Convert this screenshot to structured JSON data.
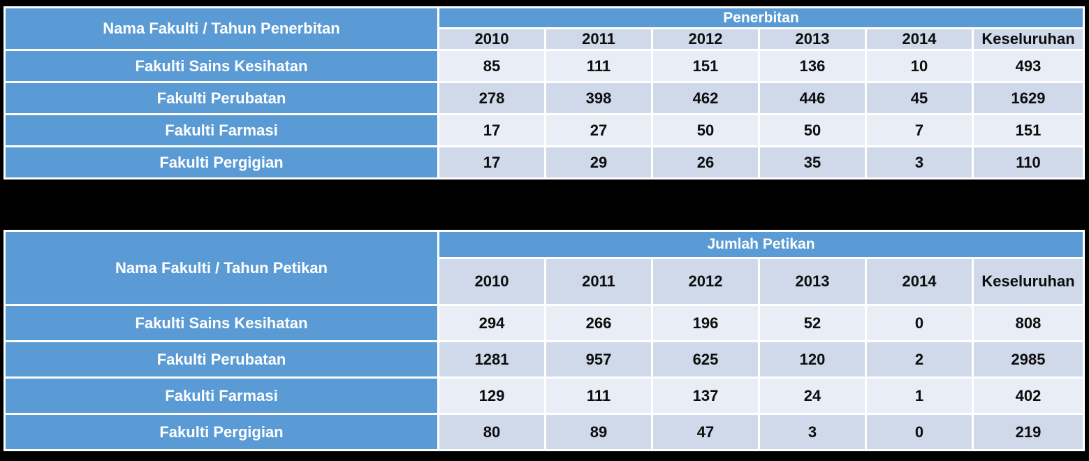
{
  "colors": {
    "background": "#000000",
    "header_blue": "#5B9BD5",
    "band_light": "#E9EDF5",
    "band_dark": "#CFD9EA",
    "separator": "#FFFFFF",
    "text_on_blue": "#FFFFFF",
    "text_dark": "#0D0D0D"
  },
  "chart_data": [
    {
      "type": "table",
      "title": "Penerbitan",
      "corner_label": "Nama Fakulti / Tahun Penerbitan",
      "columns": [
        "2010",
        "2011",
        "2012",
        "2013",
        "2014",
        "Keseluruhan"
      ],
      "rows": [
        {
          "label": "Fakulti Sains Kesihatan",
          "values": [
            85,
            111,
            151,
            136,
            10,
            493
          ]
        },
        {
          "label": "Fakulti Perubatan",
          "values": [
            278,
            398,
            462,
            446,
            45,
            1629
          ]
        },
        {
          "label": "Fakulti Farmasi",
          "values": [
            17,
            27,
            50,
            50,
            7,
            151
          ]
        },
        {
          "label": "Fakulti Pergigian",
          "values": [
            17,
            29,
            26,
            35,
            3,
            110
          ]
        }
      ]
    },
    {
      "type": "table",
      "title": "Jumlah Petikan",
      "corner_label": "Nama Fakulti / Tahun Petikan",
      "columns": [
        "2010",
        "2011",
        "2012",
        "2013",
        "2014",
        "Keseluruhan"
      ],
      "rows": [
        {
          "label": "Fakulti Sains Kesihatan",
          "values": [
            294,
            266,
            196,
            52,
            0,
            808
          ]
        },
        {
          "label": "Fakulti Perubatan",
          "values": [
            1281,
            957,
            625,
            120,
            2,
            2985
          ]
        },
        {
          "label": "Fakulti Farmasi",
          "values": [
            129,
            111,
            137,
            24,
            1,
            402
          ]
        },
        {
          "label": "Fakulti Pergigian",
          "values": [
            80,
            89,
            47,
            3,
            0,
            219
          ]
        }
      ]
    }
  ]
}
